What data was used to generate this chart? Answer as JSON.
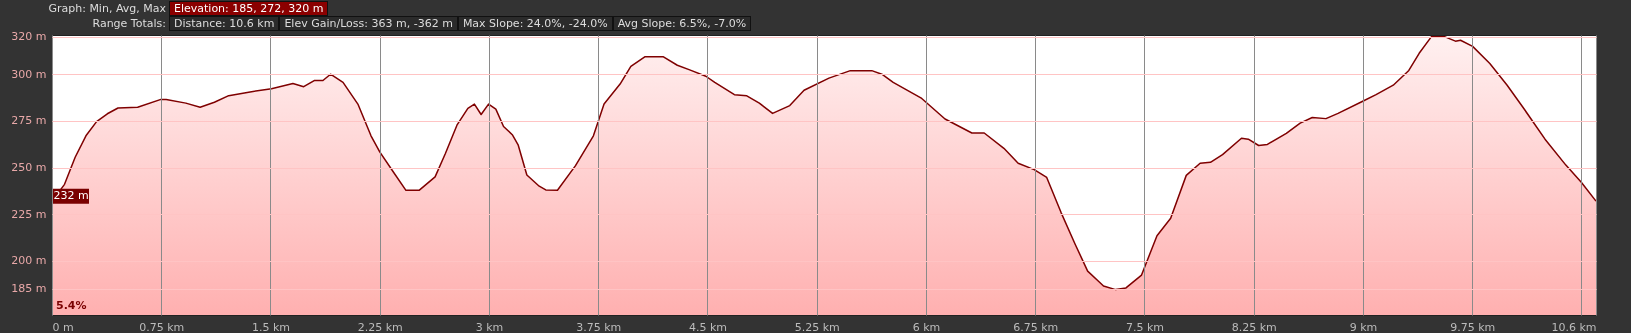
{
  "chart_data": {
    "type": "area",
    "annotations": [
      "Graph: Min, Avg, Max",
      "Elevation: 185, 272, 320 m",
      "Range Totals:",
      "Distance: 10.6 km",
      "Elev Gain/Loss: 363 m, -362 m",
      "Max Slope: 24.0%, -24.0%",
      "Avg Slope: 6.5%, -7.0%",
      "5.4%",
      {
        "text": "232 m",
        "x": 0,
        "y": 232
      }
    ],
    "x": [
      0,
      0.086,
      0.159,
      0.233,
      0.306,
      0.38,
      0.453,
      0.588,
      0.748,
      0.784,
      0.919,
      1.017,
      1.115,
      1.213,
      1.36,
      1.507,
      1.654,
      1.728,
      1.8,
      1.86,
      1.912,
      1.998,
      2.1,
      2.19,
      2.25,
      2.34,
      2.43,
      2.52,
      2.63,
      2.7,
      2.78,
      2.855,
      2.9,
      2.946,
      2.997,
      3.047,
      3.1,
      3.16,
      3.2,
      3.26,
      3.345,
      3.39,
      3.47,
      3.594,
      3.717,
      3.79,
      3.9,
      3.974,
      4.072,
      4.195,
      4.293,
      4.378,
      4.489,
      4.55,
      4.685,
      4.77,
      4.856,
      4.947,
      5.065,
      5.163,
      5.334,
      5.481,
      5.628,
      5.702,
      5.775,
      5.971,
      6.131,
      6.315,
      6.4,
      6.535,
      6.633,
      6.743,
      6.829,
      6.927,
      7.025,
      7.11,
      7.19,
      7.219,
      7.302,
      7.373,
      7.48,
      7.586,
      7.68,
      7.787,
      7.882,
      7.953,
      8.036,
      8.166,
      8.213,
      8.284,
      8.344,
      8.474,
      8.569,
      8.652,
      8.746,
      8.829,
      8.995,
      9.09,
      9.208,
      9.315,
      9.386,
      9.469,
      9.564,
      9.635,
      9.67,
      9.753,
      9.871,
      9.99,
      10.108,
      10.25,
      10.393,
      10.499,
      10.6
    ],
    "series": [
      {
        "color": "#7f0000",
        "values": [
          232,
          241,
          255.5,
          267,
          274.6,
          278.8,
          281.9,
          282.3,
          286.5,
          286.5,
          284.5,
          282.3,
          285,
          288.5,
          290.5,
          292.2,
          295,
          293.3,
          296.6,
          296.6,
          300,
          295.6,
          284,
          267,
          258.4,
          248,
          237.8,
          237.8,
          245,
          257.4,
          272.7,
          281.7,
          284,
          278.4,
          284,
          281.3,
          272,
          267.6,
          262.2,
          246,
          240,
          238,
          237.8,
          251,
          267,
          284,
          294.7,
          304.2,
          309.4,
          309.4,
          304.8,
          302.3,
          298.9,
          295.6,
          289,
          288.4,
          284.5,
          279,
          283.2,
          291.4,
          297.9,
          301.9,
          301.9,
          299.8,
          295.6,
          287,
          276,
          268.5,
          268.5,
          260.3,
          252.3,
          248.9,
          244.7,
          226,
          208.8,
          194.5,
          188.7,
          186.5,
          184.6,
          185.5,
          192.4,
          213.5,
          222.8,
          245.8,
          252.3,
          252.8,
          256.9,
          265.7,
          265.2,
          261.8,
          262.4,
          268.3,
          273.8,
          276.8,
          276.2,
          279,
          285.4,
          289.1,
          294.1,
          302,
          311.2,
          320,
          320,
          317.7,
          318.2,
          314.9,
          305.7,
          294.1,
          281.2,
          265.2,
          251.3,
          242.1,
          232
        ]
      }
    ],
    "xlim": [
      0,
      10.6
    ],
    "ylim": [
      171,
      321
    ],
    "xticks": [
      {
        "value": 0,
        "label": "0 m"
      },
      {
        "value": 0.75,
        "label": "0.75 km"
      },
      {
        "value": 1.5,
        "label": "1.5 km"
      },
      {
        "value": 2.25,
        "label": "2.25 km"
      },
      {
        "value": 3,
        "label": "3 km"
      },
      {
        "value": 3.75,
        "label": "3.75 km"
      },
      {
        "value": 4.5,
        "label": "4.5 km"
      },
      {
        "value": 5.25,
        "label": "5.25 km"
      },
      {
        "value": 6,
        "label": "6 km"
      },
      {
        "value": 6.75,
        "label": "6.75 km"
      },
      {
        "value": 7.5,
        "label": "7.5 km"
      },
      {
        "value": 8.25,
        "label": "8.25 km"
      },
      {
        "value": 9,
        "label": "9 km"
      },
      {
        "value": 9.75,
        "label": "9.75 km"
      },
      {
        "value": 10.5,
        "label": null
      },
      {
        "value": 10.6,
        "label": "10.6 km"
      }
    ],
    "yticks": [
      {
        "value": 185,
        "label": "185 m"
      },
      {
        "value": 200,
        "label": "200 m"
      },
      {
        "value": 225,
        "label": "225 m"
      },
      {
        "value": 250,
        "label": "250 m"
      },
      {
        "value": 275,
        "label": "275 m"
      },
      {
        "value": 300,
        "label": "300 m"
      },
      {
        "value": 320,
        "label": "320 m"
      }
    ],
    "grid": true
  }
}
